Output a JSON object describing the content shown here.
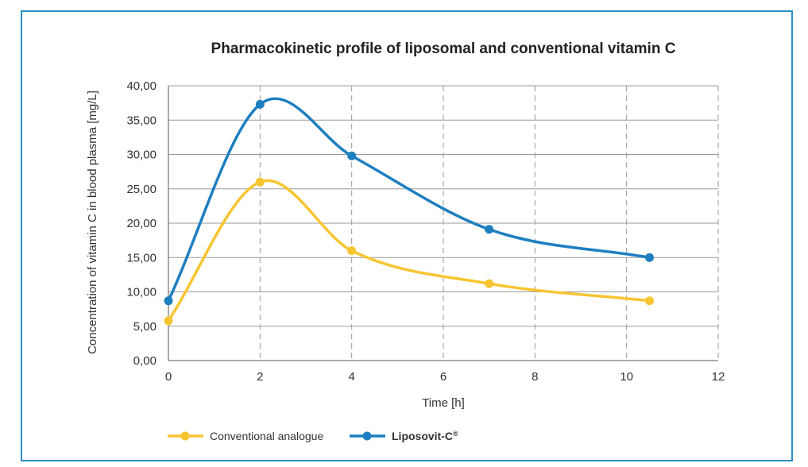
{
  "chart_data": {
    "type": "line",
    "title": "Pharmacokinetic profile of liposomal and conventional vitamin C",
    "xlabel": "Time [h]",
    "ylabel": "Concentration of vitamin C in blood plasma [mg/L]",
    "xlim": [
      0,
      12
    ],
    "ylim": [
      0,
      40
    ],
    "x_ticks": [
      "0",
      "2",
      "4",
      "6",
      "8",
      "10",
      "12"
    ],
    "y_ticks": [
      "0,00",
      "5,00",
      "10,00",
      "15,00",
      "20,00",
      "25,00",
      "30,00",
      "35,00",
      "40,00"
    ],
    "grid": "horizontal solid, vertical dashed",
    "legend_position": "bottom-left",
    "series": [
      {
        "name": "Conventional analogue",
        "color": "#f7c531",
        "x": [
          0,
          2,
          4,
          7,
          10.5
        ],
        "y": [
          5.8,
          26.0,
          16.0,
          11.2,
          8.7
        ]
      },
      {
        "name": "Liposovit-C",
        "name_suffix": "®",
        "color": "#1d7fc0",
        "x": [
          0,
          2,
          4,
          7,
          10.5
        ],
        "y": [
          8.7,
          37.3,
          29.8,
          19.1,
          15.0
        ]
      }
    ]
  }
}
